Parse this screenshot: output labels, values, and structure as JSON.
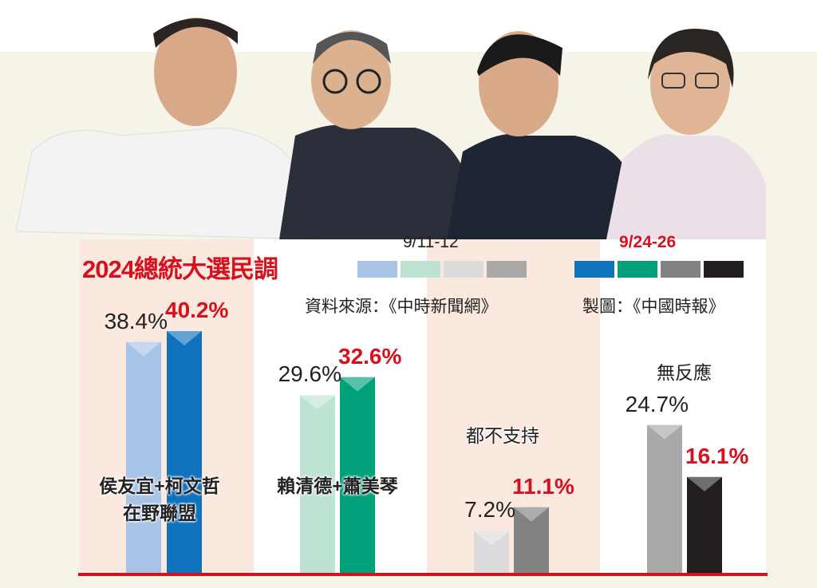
{
  "chart_data": {
    "type": "bar",
    "title": "2024總統大選民調",
    "source": "資料來源：《中時新聞網》",
    "credit": "製圖：《中國時報》",
    "categories": [
      "侯友宜+柯文哲\n在野聯盟",
      "賴清德+蕭美琴",
      "都不支持",
      "無反應"
    ],
    "category_lines": [
      [
        "侯友宜+柯文哲",
        "在野聯盟"
      ],
      [
        "賴清德+蕭美琴"
      ],
      [
        "都不支持"
      ],
      [
        "無反應"
      ]
    ],
    "series": [
      {
        "name": "9/11-12",
        "values": [
          38.4,
          29.6,
          7.2,
          24.7
        ],
        "labels": [
          "38.4%",
          "29.6%",
          "7.2%",
          "24.7%"
        ],
        "colors": [
          "#a7c3e6",
          "#bfe3d3",
          "#dcdcdc",
          "#a9a9a9"
        ]
      },
      {
        "name": "9/24-26",
        "values": [
          40.2,
          32.6,
          11.1,
          16.1
        ],
        "labels": [
          "40.2%",
          "32.6%",
          "11.1%",
          "16.1%"
        ],
        "colors": [
          "#0e72bd",
          "#00a07a",
          "#828282",
          "#231f20"
        ]
      }
    ],
    "legend_title_colors": [
      "#222222",
      "#d7101e"
    ],
    "ylim": [
      0,
      45
    ],
    "grid": false,
    "accent": "#d7101e"
  }
}
